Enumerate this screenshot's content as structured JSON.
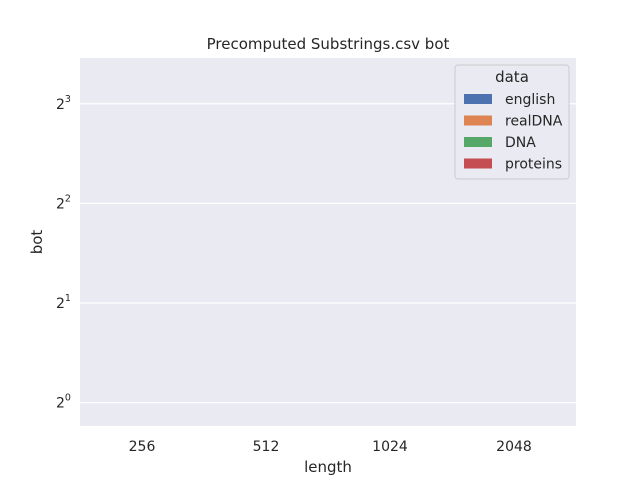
{
  "chart_data": {
    "type": "bar",
    "title": "Precomputed Substrings.csv bot",
    "xlabel": "length",
    "ylabel": "bot",
    "categories": [
      "256",
      "512",
      "1024",
      "2048"
    ],
    "y_scale": "log2",
    "ylim": [
      0.85,
      11.0
    ],
    "y_ticks": [
      {
        "value": 1,
        "base": "2",
        "exp": "0"
      },
      {
        "value": 2,
        "base": "2",
        "exp": "1"
      },
      {
        "value": 4,
        "base": "2",
        "exp": "2"
      },
      {
        "value": 8,
        "base": "2",
        "exp": "3"
      }
    ],
    "grid": true,
    "legend": {
      "title": "data",
      "placement": "top-right",
      "entries": [
        {
          "name": "english",
          "color": "#4c72b0"
        },
        {
          "name": "realDNA",
          "color": "#dd8452"
        },
        {
          "name": "DNA",
          "color": "#55a868"
        },
        {
          "name": "proteins",
          "color": "#c44e52"
        }
      ]
    },
    "series": [
      {
        "name": "english",
        "values": [
          null,
          null,
          null,
          null
        ]
      },
      {
        "name": "realDNA",
        "values": [
          null,
          null,
          null,
          null
        ]
      },
      {
        "name": "DNA",
        "values": [
          null,
          null,
          null,
          null
        ]
      },
      {
        "name": "proteins",
        "values": [
          null,
          null,
          null,
          null
        ]
      }
    ]
  },
  "colors": {
    "plot_background": "#eaeaf2",
    "gridline": "#ffffff",
    "legend_background": "#eaeaf2",
    "legend_border": "#cccccc"
  }
}
